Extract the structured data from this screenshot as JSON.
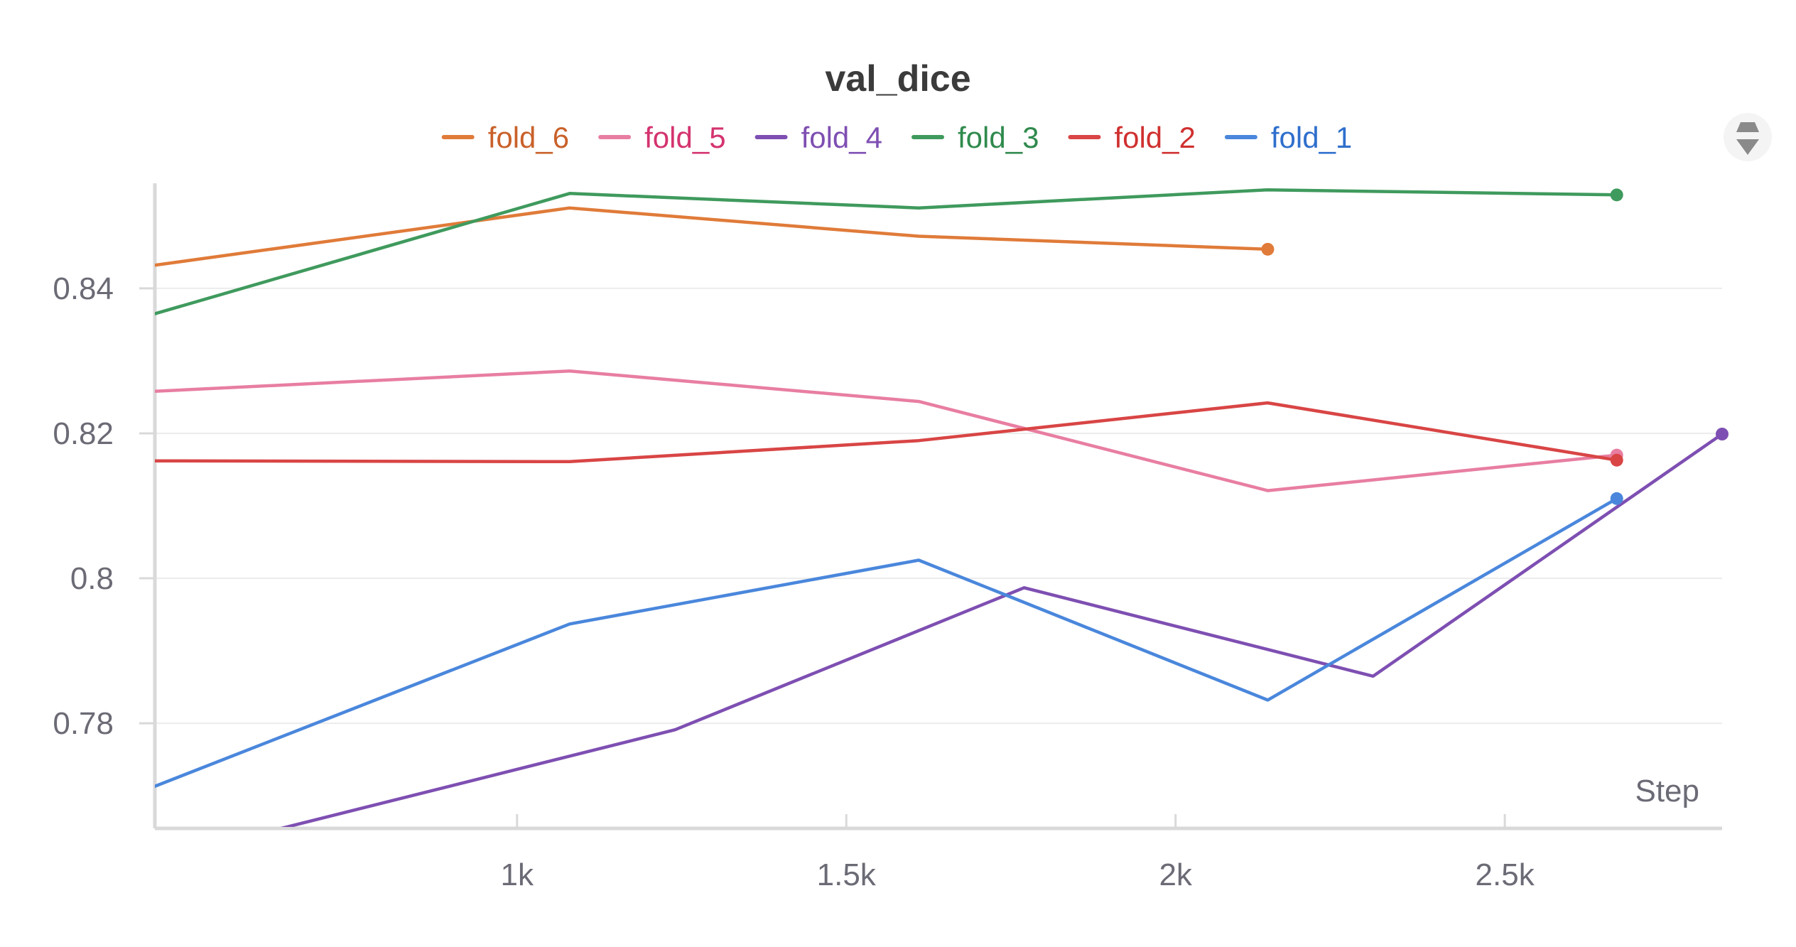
{
  "chart_data": {
    "type": "line",
    "title": "val_dice",
    "xlabel": "Step",
    "ylabel": "",
    "xlim": [
      450,
      2830
    ],
    "ylim": [
      0.7655,
      0.8545
    ],
    "x_ticks": [
      {
        "value": 1000,
        "label": "1k"
      },
      {
        "value": 1500,
        "label": "1.5k"
      },
      {
        "value": 2000,
        "label": "2k"
      },
      {
        "value": 2500,
        "label": "2.5k"
      }
    ],
    "y_ticks": [
      {
        "value": 0.78,
        "label": "0.78"
      },
      {
        "value": 0.8,
        "label": "0.8"
      },
      {
        "value": 0.82,
        "label": "0.82"
      },
      {
        "value": 0.84,
        "label": "0.84"
      }
    ],
    "grid": true,
    "legend_position": "top",
    "series": [
      {
        "name": "fold_6",
        "color": "#e07b39",
        "text_color": "#c9612a",
        "points": [
          [
            450,
            0.8432
          ],
          [
            1080,
            0.8511
          ],
          [
            1610,
            0.8472
          ],
          [
            2140,
            0.8454
          ]
        ]
      },
      {
        "name": "fold_5",
        "color": "#e87ea1",
        "text_color": "#d4336f",
        "points": [
          [
            450,
            0.8258
          ],
          [
            1080,
            0.8286
          ],
          [
            1610,
            0.8244
          ],
          [
            2140,
            0.8121
          ],
          [
            2670,
            0.817
          ]
        ]
      },
      {
        "name": "fold_4",
        "color": "#7e4fb2",
        "text_color": "#7e4fb2",
        "points": [
          [
            620,
            0.765
          ],
          [
            1240,
            0.7791
          ],
          [
            1770,
            0.7987
          ],
          [
            2300,
            0.7865
          ],
          [
            2830,
            0.8199
          ]
        ]
      },
      {
        "name": "fold_3",
        "color": "#3f9a5d",
        "text_color": "#2f8a4d",
        "points": [
          [
            450,
            0.8365
          ],
          [
            1080,
            0.8531
          ],
          [
            1610,
            0.8511
          ],
          [
            2140,
            0.8536
          ],
          [
            2670,
            0.8529
          ]
        ]
      },
      {
        "name": "fold_2",
        "color": "#d94545",
        "text_color": "#d03030",
        "points": [
          [
            450,
            0.8162
          ],
          [
            1080,
            0.8161
          ],
          [
            1610,
            0.819
          ],
          [
            2140,
            0.8242
          ],
          [
            2670,
            0.8163
          ]
        ]
      },
      {
        "name": "fold_1",
        "color": "#4a87dc",
        "text_color": "#2f6fcc",
        "points": [
          [
            450,
            0.7713
          ],
          [
            1080,
            0.7937
          ],
          [
            1610,
            0.8025
          ],
          [
            2140,
            0.7832
          ],
          [
            2670,
            0.811
          ]
        ]
      }
    ]
  },
  "controls": {
    "menu_icon": "chevron-stack-icon",
    "menu_icon_color": "#8a8a8a"
  }
}
